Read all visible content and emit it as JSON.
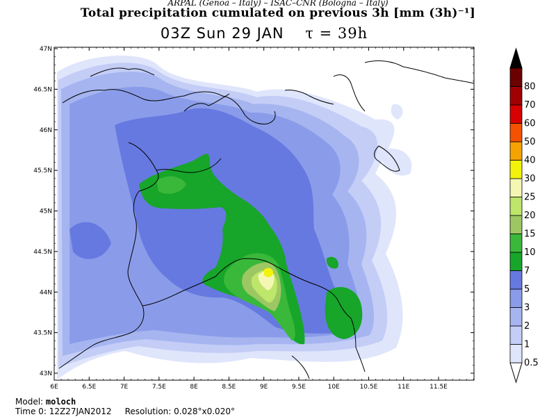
{
  "header": {
    "credits": "ARPAL (Genoa – Italy)   –   ISAC–CNR (Bologna – Italy)",
    "title": "Total precipitation cumulated on previous 3h [mm (3h)⁻¹]",
    "valid_time": "03Z Sun 29 JAN",
    "tau": "τ = 39h"
  },
  "map": {
    "lat_labels": [
      "47N",
      "46.5N",
      "46N",
      "45.5N",
      "45N",
      "44.5N",
      "44N",
      "43.5N",
      "43N"
    ],
    "lat_values": [
      47,
      46.5,
      46,
      45.5,
      45,
      44.5,
      44,
      43.5,
      43
    ],
    "lon_labels": [
      "6E",
      "6.5E",
      "7E",
      "7.5E",
      "8E",
      "8.5E",
      "9E",
      "9.5E",
      "10E",
      "10.5E",
      "11E",
      "11.5E"
    ],
    "lon_values": [
      6,
      6.5,
      7,
      7.5,
      8,
      8.5,
      9,
      9.5,
      10,
      10.5,
      11,
      11.5
    ]
  },
  "colorbar": {
    "units_label": "mm (3h)⁻¹",
    "levels": [
      {
        "value": "0.5",
        "color": "#dfe5fb"
      },
      {
        "value": "1",
        "color": "#c3cdf6"
      },
      {
        "value": "2",
        "color": "#a6b5f0"
      },
      {
        "value": "3",
        "color": "#8a9ce9"
      },
      {
        "value": "5",
        "color": "#6679e0"
      },
      {
        "value": "7",
        "color": "#17a52a"
      },
      {
        "value": "10",
        "color": "#3ab83a"
      },
      {
        "value": "15",
        "color": "#9dc762"
      },
      {
        "value": "20",
        "color": "#bde66a"
      },
      {
        "value": "25",
        "color": "#f4f7b4"
      },
      {
        "value": "30",
        "color": "#f2f20a"
      },
      {
        "value": "40",
        "color": "#f4a300"
      },
      {
        "value": "50",
        "color": "#f45200"
      },
      {
        "value": "60",
        "color": "#d80000"
      },
      {
        "value": "70",
        "color": "#a00000"
      },
      {
        "value": "80",
        "color": "#6a0000"
      }
    ],
    "overflow_color": "#000000"
  },
  "footer": {
    "model_label": "Model:",
    "model_value": "moloch",
    "time0_label": "Time 0:",
    "time0_value": "12Z27JAN2012",
    "resolution_label": "Resolution:",
    "resolution_value": "0.028°x0.020°"
  }
}
